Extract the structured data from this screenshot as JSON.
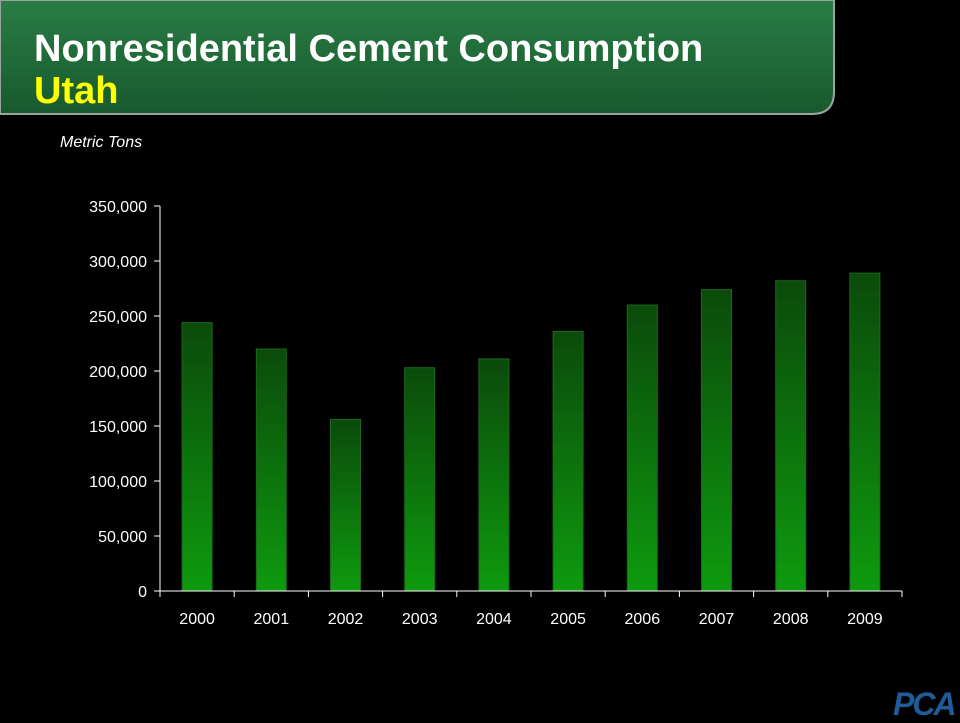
{
  "header": {
    "title": "Nonresidential Cement Consumption",
    "subtitle": "Utah"
  },
  "units_label": "Metric Tons",
  "logo_text": "PCA",
  "colors": {
    "header_green": "#1e6e3a",
    "title_white": "#ffffff",
    "title_yellow": "#ffff00",
    "bar_top": "#0b4a0b",
    "bar_bottom": "#0e9a0e"
  },
  "chart_data": {
    "type": "bar",
    "title": "",
    "xlabel": "",
    "ylabel": "Metric Tons",
    "categories": [
      "2000",
      "2001",
      "2002",
      "2003",
      "2004",
      "2005",
      "2006",
      "2007",
      "2008",
      "2009"
    ],
    "values": [
      244000,
      220000,
      156000,
      203000,
      211000,
      236000,
      260000,
      274000,
      282000,
      289000
    ],
    "ylim": [
      0,
      350000
    ],
    "yticks": [
      0,
      50000,
      100000,
      150000,
      200000,
      250000,
      300000,
      350000
    ],
    "ytick_labels": [
      "0",
      "50,000",
      "100,000",
      "150,000",
      "200,000",
      "250,000",
      "300,000",
      "350,000"
    ],
    "grid": false,
    "legend": "none"
  }
}
